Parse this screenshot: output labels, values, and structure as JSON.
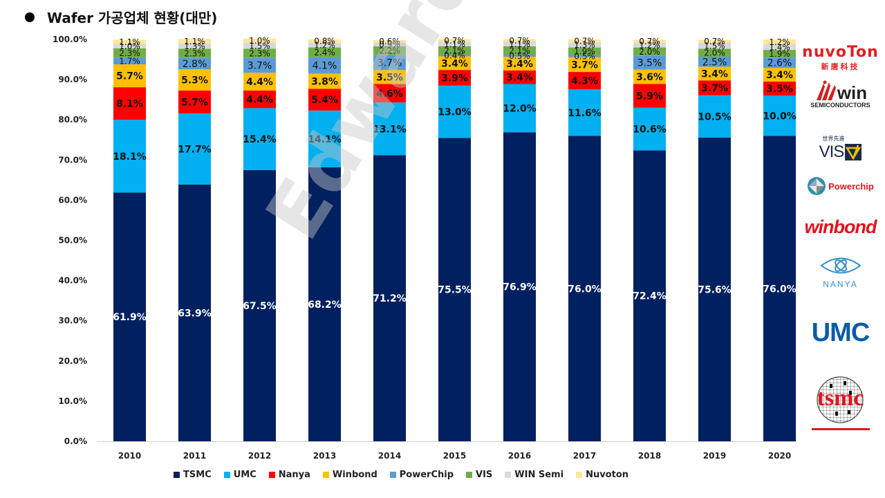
{
  "title": "Wafer 가공업체 현황(대만)",
  "watermark": "Edward Choi",
  "chart_data": {
    "type": "bar",
    "stacked": true,
    "title": "Wafer 가공업체 현황(대만)",
    "xlabel": "",
    "ylabel": "",
    "ylim": [
      0,
      100
    ],
    "yticks": [
      "0.0%",
      "10.0%",
      "20.0%",
      "30.0%",
      "40.0%",
      "50.0%",
      "60.0%",
      "70.0%",
      "80.0%",
      "90.0%",
      "100.0%"
    ],
    "grid": false,
    "legend_position": "bottom",
    "categories": [
      "2010",
      "2011",
      "2012",
      "2013",
      "2014",
      "2015",
      "2016",
      "2017",
      "2018",
      "2019",
      "2020"
    ],
    "series": [
      {
        "name": "TSMC",
        "color": "#002060",
        "label_color": "#ffffff",
        "values": [
          61.9,
          63.9,
          67.5,
          68.2,
          71.2,
          75.5,
          76.9,
          76.0,
          72.4,
          75.6,
          76.0
        ]
      },
      {
        "name": "UMC",
        "color": "#00B0F0",
        "label_color": "#111111",
        "values": [
          18.1,
          17.7,
          15.4,
          14.1,
          13.1,
          13.0,
          12.0,
          11.6,
          10.6,
          10.5,
          10.0
        ]
      },
      {
        "name": "Nanya",
        "color": "#FF0000",
        "label_color": "#111111",
        "values": [
          8.1,
          5.7,
          4.4,
          5.4,
          4.6,
          3.9,
          3.4,
          4.3,
          5.9,
          3.7,
          3.5
        ]
      },
      {
        "name": "Winbond",
        "color": "#FFC000",
        "label_color": "#111111",
        "values": [
          5.7,
          5.3,
          4.4,
          3.8,
          3.5,
          3.4,
          3.4,
          3.7,
          3.6,
          3.4,
          3.4
        ]
      },
      {
        "name": "PowerChip",
        "color": "#5B9BD5",
        "label_color": "#111111",
        "values": [
          1.7,
          2.8,
          3.7,
          4.1,
          3.7,
          0.4,
          0.5,
          0.5,
          3.5,
          2.5,
          2.6
        ]
      },
      {
        "name": "VIS",
        "color": "#70AD47",
        "label_color": "#111111",
        "values": [
          2.3,
          2.3,
          2.3,
          2.4,
          2.2,
          2.1,
          2.1,
          1.9,
          2.0,
          2.0,
          1.9
        ]
      },
      {
        "name": "WIN Semi",
        "color": "#D9D9D9",
        "label_color": "#111111",
        "values": [
          1.0,
          1.3,
          1.5,
          1.2,
          0.9,
          1.1,
          1.1,
          1.3,
          1.2,
          1.5,
          1.4
        ]
      },
      {
        "name": "Nuvoton",
        "color": "#FFE699",
        "label_color": "#111111",
        "values": [
          1.1,
          1.1,
          1.0,
          0.8,
          0.6,
          0.7,
          0.7,
          0.7,
          0.7,
          0.7,
          1.2
        ]
      }
    ]
  },
  "logos": [
    {
      "name": "Nuvoton",
      "text": "nuvoTon",
      "sub": "新唐科技",
      "color": "#E02020"
    },
    {
      "name": "WIN Semiconductors",
      "text": "win",
      "sub": "SEMICONDUCTORS",
      "color": "#222222"
    },
    {
      "name": "VIS",
      "text": "VIS",
      "sub": "世界先進",
      "color": "#1a2a4a"
    },
    {
      "name": "Powerchip",
      "text": "Powerchip",
      "color": "#E0141E"
    },
    {
      "name": "Winbond",
      "text": "winbond",
      "color": "#E0141E"
    },
    {
      "name": "Nanya",
      "text": "NANYA",
      "color": "#2F8FC8"
    },
    {
      "name": "UMC",
      "text": "UMC",
      "color": "#0B5CA8"
    },
    {
      "name": "TSMC",
      "text": "tsmc",
      "color": "#E0141E"
    }
  ]
}
